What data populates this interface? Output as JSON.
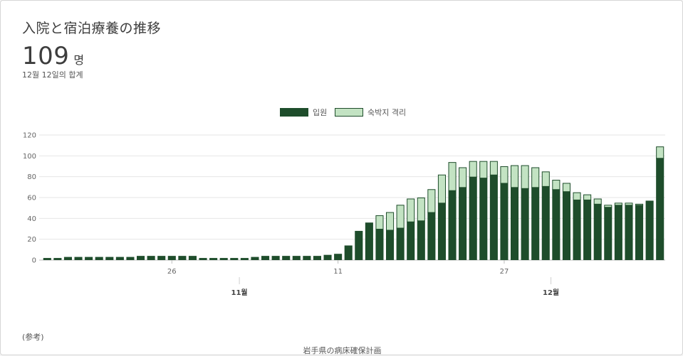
{
  "card": {
    "title": "入院と宿泊療養の推移",
    "total_value": "109",
    "total_unit": "명",
    "date_summary": "12월 12일의 합계",
    "note": "(参考)",
    "caption": "岩手県の病床確保計画"
  },
  "colors": {
    "hospital": "#1e4d2b",
    "hotel": "#c3e3c3",
    "grid": "#e6e6e6"
  },
  "chart_data": {
    "type": "bar",
    "stacked": true,
    "legend_position": "top",
    "series": [
      {
        "name": "입원",
        "values": [
          2,
          2,
          3,
          3,
          3,
          3,
          3,
          3,
          3,
          4,
          4,
          4,
          4,
          4,
          4,
          2,
          2,
          2,
          2,
          2,
          3,
          4,
          4,
          4,
          4,
          4,
          4,
          5,
          6,
          14,
          28,
          36,
          30,
          29,
          31,
          37,
          38,
          46,
          55,
          67,
          70,
          80,
          79,
          82,
          74,
          70,
          69,
          70,
          71,
          68,
          66,
          58,
          58,
          54,
          51,
          53,
          53,
          53,
          57,
          98
        ]
      },
      {
        "name": "숙박지 격리",
        "values": [
          0,
          0,
          0,
          0,
          0,
          0,
          0,
          0,
          0,
          0,
          0,
          0,
          0,
          0,
          0,
          0,
          0,
          0,
          0,
          0,
          0,
          0,
          0,
          0,
          0,
          0,
          0,
          0,
          0,
          0,
          0,
          0,
          13,
          17,
          22,
          22,
          22,
          22,
          27,
          27,
          19,
          15,
          16,
          13,
          16,
          21,
          22,
          19,
          14,
          9,
          8,
          7,
          5,
          5,
          2,
          2,
          2,
          1,
          0,
          11
        ]
      }
    ],
    "x_tick_labels": [
      {
        "index": 12,
        "label": "26"
      },
      {
        "index": 28,
        "label": "11"
      },
      {
        "index": 44,
        "label": "27"
      }
    ],
    "month_labels": [
      {
        "index": 18.5,
        "label": "11월"
      },
      {
        "index": 48.5,
        "label": "12월"
      }
    ],
    "y_ticks": [
      0,
      20,
      40,
      60,
      80,
      100,
      120
    ],
    "ylim": [
      0,
      120
    ],
    "grid": true
  }
}
